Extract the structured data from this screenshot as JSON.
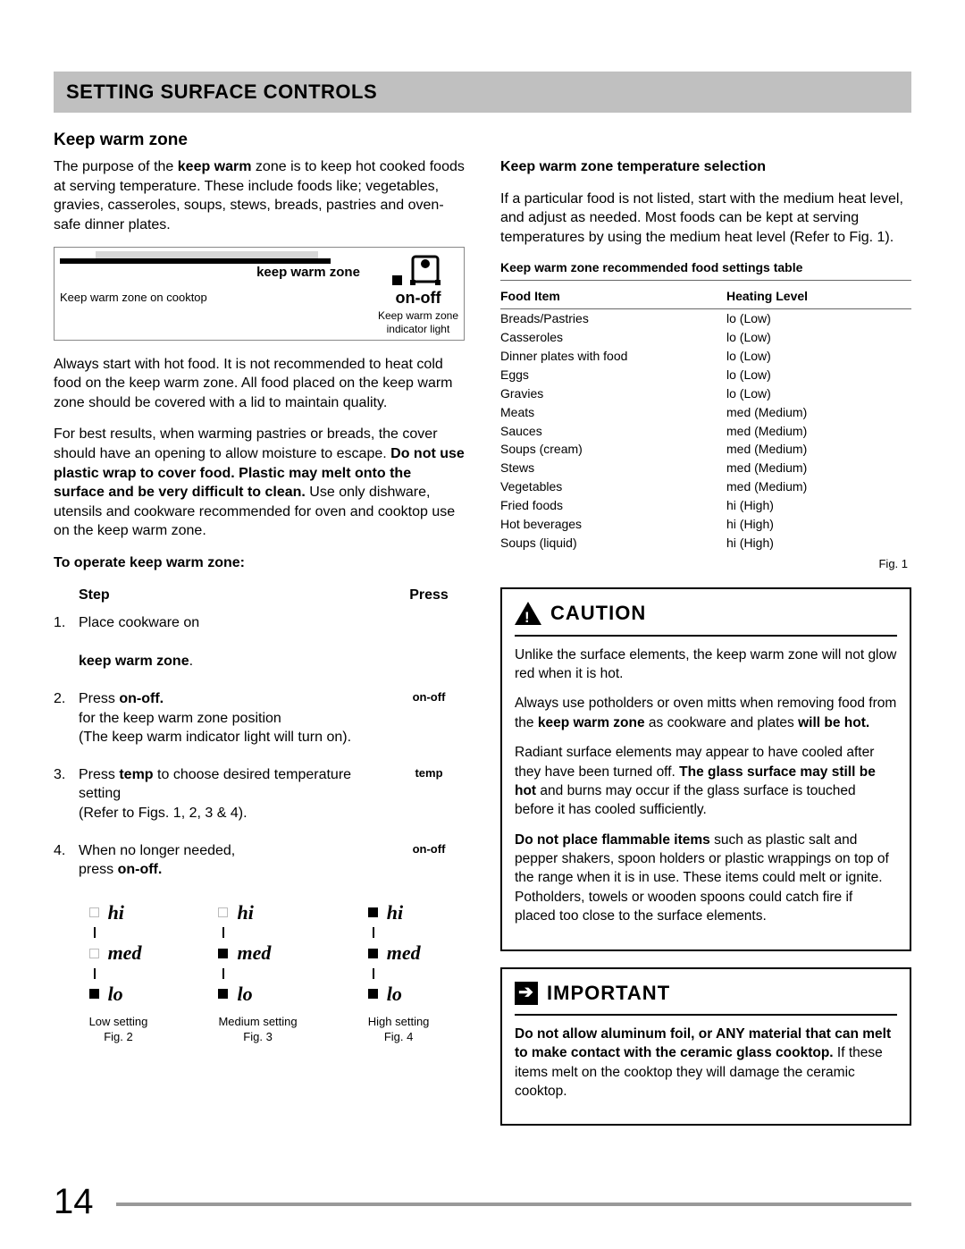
{
  "page_number": "14",
  "header_title": "SETTING SURFACE CONTROLS",
  "subheading": "Keep warm zone",
  "left": {
    "intro_pre": "The purpose of the ",
    "intro_bold": "keep warm",
    "intro_post": " zone is to keep hot cooked foods at serving temperature. These include foods like; vegetables, gravies, casseroles, soups, stews, breads, pastries and oven-safe dinner plates.",
    "kwz_label": "keep warm zone",
    "kwz_caption": "Keep warm zone on cooktop",
    "ind_onoff": "on-off",
    "ind_caption1": "Keep warm zone",
    "ind_caption2": "indicator light",
    "para2": "Always start with hot food. It is not recommended to heat cold food on the keep warm zone. All food placed on the keep warm zone should be covered with a lid to maintain quality.",
    "para3a": "For best results, when warming pastries or breads, the cover should have an opening to allow moisture to escape. ",
    "para3b": "Do not use plastic wrap to cover food. Plastic may melt onto the surface and be very difficult to clean.",
    "para3c": " Use only dishware, utensils and cookware recommended for oven and cooktop use on the keep warm zone.",
    "operate_title": "To operate keep warm zone:",
    "step_col": "Step",
    "press_col": "Press",
    "step1_text": "Place cookware on",
    "step1_bold": "keep warm zone",
    "step1_dot": ".",
    "step2_pre": "Press ",
    "step2_bold": "on-off.",
    "step2_post1": "for the keep warm zone position",
    "step2_post2": "(The keep warm indicator light will turn on).",
    "step2_press": "on-off",
    "step3_pre": "Press ",
    "step3_bold": "temp",
    "step3_post": " to choose desired temperature setting",
    "step3_post2": "(Refer to Figs. 1, 2, 3 & 4).",
    "step3_press": "temp",
    "step4_pre": "When no longer needed,",
    "step4_pre2": "press ",
    "step4_bold": "on-off.",
    "step4_press": "on-off",
    "heat_hi": "hi",
    "heat_med": "med",
    "heat_lo": "lo",
    "cap_low": "Low setting",
    "fig2": "Fig. 2",
    "cap_med": "Medium setting",
    "fig3": "Fig. 3",
    "cap_high": "High setting",
    "fig4": "Fig. 4"
  },
  "right": {
    "sel_title": "Keep warm zone temperature selection",
    "sel_para": "If a particular food is not listed, start with the medium heat level, and adjust as needed. Most foods can be kept at serving temperatures by using the medium heat level (Refer to Fig. 1).",
    "table_title": "Keep warm zone recommended food settings table",
    "th_food": "Food Item",
    "th_level": "Heating Level",
    "rows": [
      {
        "food": "Breads/Pastries",
        "level": "lo (Low)"
      },
      {
        "food": "Casseroles",
        "level": "lo (Low)"
      },
      {
        "food": "Dinner plates with food",
        "level": "lo (Low)"
      },
      {
        "food": "Eggs",
        "level": "lo (Low)"
      },
      {
        "food": "Gravies",
        "level": "lo (Low)"
      },
      {
        "food": "Meats",
        "level": "med (Medium)"
      },
      {
        "food": "Sauces",
        "level": "med (Medium)"
      },
      {
        "food": "Soups (cream)",
        "level": "med (Medium)"
      },
      {
        "food": "Stews",
        "level": "med (Medium)"
      },
      {
        "food": "Vegetables",
        "level": "med (Medium)"
      },
      {
        "food": "Fried foods",
        "level": "hi (High)"
      },
      {
        "food": "Hot beverages",
        "level": "hi (High)"
      },
      {
        "food": "Soups (liquid)",
        "level": "hi (High)"
      }
    ],
    "fig1": "Fig. 1",
    "caution_title": "CAUTION",
    "caution_p1": "Unlike the surface elements, the keep warm zone will not glow red when it is hot.",
    "caution_p2a": "Always use potholders or oven mitts when removing food from the ",
    "caution_p2b": "keep warm zone",
    "caution_p2c": " as cookware and plates ",
    "caution_p2d": "will be hot.",
    "caution_p3a": "Radiant surface elements may appear to have cooled after they have been turned off. ",
    "caution_p3b": "The glass surface may still be hot",
    "caution_p3c": " and burns may occur if the glass surface is touched before it has cooled sufficiently.",
    "caution_p4a": "Do not place flammable items",
    "caution_p4b": " such as plastic salt and pepper shakers, spoon holders or plastic wrappings on top of the range when it is in use. These items could melt or ignite. Potholders, towels or wooden spoons could catch fire if placed too close to the surface elements.",
    "important_title": "IMPORTANT",
    "imp_p1": "Do not allow aluminum foil, or ANY material that can melt to make contact with the ceramic glass cooktop.",
    "imp_p2": " If these items melt on the cooktop they will damage the ceramic cooktop."
  }
}
